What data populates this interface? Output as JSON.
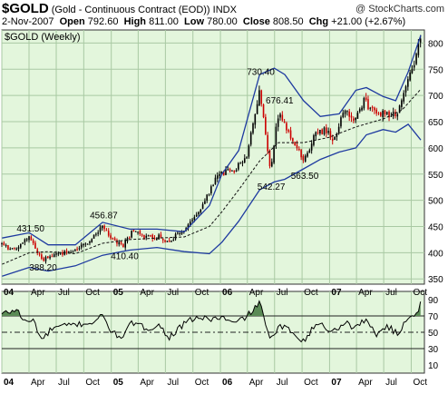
{
  "header": {
    "symbol": "$GOLD",
    "name": "(Gold - Continuous Contract (EOD))",
    "exchange": "INDX",
    "date": "2-Nov-2007",
    "open_label": "Open",
    "open": "792.60",
    "high_label": "High",
    "high": "811.00",
    "low_label": "Low",
    "low": "780.00",
    "close_label": "Close",
    "close": "808.50",
    "chg_label": "Chg",
    "chg": "+21.00 (+2.67%)",
    "brand": "@ StockCharts.com"
  },
  "colors": {
    "panel_bg": "#e3f6dc",
    "grid": "#a9c9a3",
    "bull_candle": "#000000",
    "bear_candle": "#cc0000",
    "bollinger": "#1e3aa0",
    "ma_dashed": "#111111",
    "rsi_line": "#000000",
    "rsi_fill": "#5a8a55"
  },
  "chart_data": [
    {
      "type": "candlestick",
      "title": "$GOLD (Weekly)",
      "frequency": "weekly",
      "overlays": [
        "Bollinger Bands (upper, lower)",
        "moving average (dashed)"
      ],
      "ylim": [
        340,
        825
      ],
      "y_ticks": [
        350,
        400,
        450,
        500,
        550,
        600,
        650,
        700,
        750,
        800
      ],
      "x_tick_labels": [
        "04",
        "Apr",
        "Jul",
        "Oct",
        "05",
        "Apr",
        "Jul",
        "Oct",
        "06",
        "Apr",
        "Jul",
        "Oct",
        "07",
        "Apr",
        "Jul",
        "Oct"
      ],
      "x_range": [
        "2004-01-01",
        "2007-11-02"
      ],
      "annotations": [
        {
          "date": "2004-04-02",
          "value": 431.5,
          "label": "431.50"
        },
        {
          "date": "2004-05-14",
          "value": 388.2,
          "label": "388.20"
        },
        {
          "date": "2004-12-03",
          "value": 456.87,
          "label": "456.87"
        },
        {
          "date": "2005-02-11",
          "value": 410.4,
          "label": "410.40"
        },
        {
          "date": "2006-05-12",
          "value": 730.4,
          "label": "730.40"
        },
        {
          "date": "2006-06-16",
          "value": 542.27,
          "label": "542.27"
        },
        {
          "date": "2006-07-14",
          "value": 676.41,
          "label": "676.41"
        },
        {
          "date": "2006-10-06",
          "value": 563.5,
          "label": "563.50"
        }
      ],
      "close_anchors": [
        [
          "2004-01-02",
          415
        ],
        [
          "2004-02-06",
          405
        ],
        [
          "2004-04-02",
          428
        ],
        [
          "2004-05-14",
          385
        ],
        [
          "2004-07-02",
          395
        ],
        [
          "2004-09-03",
          405
        ],
        [
          "2004-10-15",
          420
        ],
        [
          "2004-12-03",
          450
        ],
        [
          "2005-01-07",
          425
        ],
        [
          "2005-02-11",
          415
        ],
        [
          "2005-03-11",
          440
        ],
        [
          "2005-04-29",
          430
        ],
        [
          "2005-06-10",
          430
        ],
        [
          "2005-07-15",
          422
        ],
        [
          "2005-09-02",
          445
        ],
        [
          "2005-10-14",
          470
        ],
        [
          "2005-12-09",
          535
        ],
        [
          "2006-01-06",
          550
        ],
        [
          "2006-02-17",
          560
        ],
        [
          "2006-03-31",
          585
        ],
        [
          "2006-05-12",
          715
        ],
        [
          "2006-06-16",
          555
        ],
        [
          "2006-07-14",
          665
        ],
        [
          "2006-08-25",
          620
        ],
        [
          "2006-10-06",
          575
        ],
        [
          "2006-11-17",
          630
        ],
        [
          "2006-12-29",
          635
        ],
        [
          "2007-01-12",
          610
        ],
        [
          "2007-02-23",
          680
        ],
        [
          "2007-03-16",
          650
        ],
        [
          "2007-04-27",
          690
        ],
        [
          "2007-06-01",
          665
        ],
        [
          "2007-07-06",
          665
        ],
        [
          "2007-08-17",
          665
        ],
        [
          "2007-09-21",
          730
        ],
        [
          "2007-10-19",
          780
        ],
        [
          "2007-11-02",
          808.5
        ]
      ],
      "upper_band": [
        [
          "2004-01-02",
          428
        ],
        [
          "2004-04-02",
          438
        ],
        [
          "2004-06-04",
          415
        ],
        [
          "2004-09-03",
          415
        ],
        [
          "2004-12-03",
          458
        ],
        [
          "2005-03-04",
          445
        ],
        [
          "2005-06-03",
          445
        ],
        [
          "2005-09-02",
          440
        ],
        [
          "2005-11-25",
          490
        ],
        [
          "2006-01-06",
          550
        ],
        [
          "2006-03-03",
          595
        ],
        [
          "2006-05-12",
          740
        ],
        [
          "2006-06-30",
          752
        ],
        [
          "2006-08-04",
          740
        ],
        [
          "2006-10-06",
          690
        ],
        [
          "2006-12-01",
          660
        ],
        [
          "2007-02-02",
          665
        ],
        [
          "2007-03-30",
          710
        ],
        [
          "2007-05-04",
          715
        ],
        [
          "2007-06-29",
          698
        ],
        [
          "2007-08-10",
          690
        ],
        [
          "2007-09-21",
          745
        ],
        [
          "2007-11-02",
          815
        ]
      ],
      "lower_band": [
        [
          "2004-01-02",
          355
        ],
        [
          "2004-04-02",
          372
        ],
        [
          "2004-06-04",
          365
        ],
        [
          "2004-09-03",
          375
        ],
        [
          "2004-12-03",
          395
        ],
        [
          "2005-03-04",
          405
        ],
        [
          "2005-06-03",
          410
        ],
        [
          "2005-09-02",
          402
        ],
        [
          "2005-11-25",
          398
        ],
        [
          "2006-01-06",
          420
        ],
        [
          "2006-03-03",
          460
        ],
        [
          "2006-05-12",
          520
        ],
        [
          "2006-06-30",
          535
        ],
        [
          "2006-08-04",
          540
        ],
        [
          "2006-10-06",
          560
        ],
        [
          "2006-12-01",
          578
        ],
        [
          "2007-02-02",
          592
        ],
        [
          "2007-03-30",
          600
        ],
        [
          "2007-05-04",
          625
        ],
        [
          "2007-06-29",
          635
        ],
        [
          "2007-08-10",
          630
        ],
        [
          "2007-09-21",
          645
        ],
        [
          "2007-11-02",
          615
        ]
      ],
      "moving_average": [
        [
          "2004-01-02",
          378
        ],
        [
          "2004-04-02",
          400
        ],
        [
          "2004-06-04",
          402
        ],
        [
          "2004-09-03",
          398
        ],
        [
          "2004-12-03",
          418
        ],
        [
          "2005-03-04",
          425
        ],
        [
          "2005-06-03",
          428
        ],
        [
          "2005-09-02",
          430
        ],
        [
          "2005-11-25",
          450
        ],
        [
          "2006-01-06",
          478
        ],
        [
          "2006-03-03",
          520
        ],
        [
          "2006-05-12",
          575
        ],
        [
          "2006-07-14",
          610
        ],
        [
          "2006-10-06",
          610
        ],
        [
          "2006-12-29",
          620
        ],
        [
          "2007-03-30",
          640
        ],
        [
          "2007-06-29",
          655
        ],
        [
          "2007-08-31",
          672
        ],
        [
          "2007-11-02",
          712
        ]
      ]
    },
    {
      "type": "line",
      "title": "RSI",
      "ylim": [
        0,
        100
      ],
      "y_ticks": [
        10,
        30,
        50,
        70,
        90
      ],
      "reference_lines": [
        30,
        50,
        70
      ],
      "x_tick_labels": [
        "04",
        "Apr",
        "Jul",
        "Oct",
        "05",
        "Apr",
        "Jul",
        "Oct",
        "06",
        "Apr",
        "Jul",
        "Oct",
        "07",
        "Apr",
        "Jul",
        "Oct"
      ],
      "rsi_anchors": [
        [
          "2004-01-02",
          72
        ],
        [
          "2004-02-20",
          78
        ],
        [
          "2004-03-19",
          62
        ],
        [
          "2004-04-16",
          65
        ],
        [
          "2004-05-14",
          40
        ],
        [
          "2004-06-18",
          55
        ],
        [
          "2004-08-06",
          58
        ],
        [
          "2004-09-17",
          60
        ],
        [
          "2004-10-29",
          62
        ],
        [
          "2004-12-03",
          70
        ],
        [
          "2005-01-07",
          48
        ],
        [
          "2005-02-11",
          45
        ],
        [
          "2005-03-11",
          62
        ],
        [
          "2005-04-22",
          55
        ],
        [
          "2005-06-10",
          58
        ],
        [
          "2005-07-15",
          44
        ],
        [
          "2005-08-26",
          58
        ],
        [
          "2005-10-07",
          68
        ],
        [
          "2005-11-25",
          66
        ],
        [
          "2006-01-06",
          68
        ],
        [
          "2006-02-17",
          60
        ],
        [
          "2006-04-14",
          74
        ],
        [
          "2006-05-12",
          88
        ],
        [
          "2006-06-02",
          55
        ],
        [
          "2006-06-23",
          42
        ],
        [
          "2006-07-21",
          58
        ],
        [
          "2006-09-01",
          50
        ],
        [
          "2006-10-06",
          40
        ],
        [
          "2006-11-24",
          62
        ],
        [
          "2007-01-12",
          50
        ],
        [
          "2007-02-23",
          64
        ],
        [
          "2007-03-16",
          55
        ],
        [
          "2007-04-27",
          65
        ],
        [
          "2007-06-08",
          48
        ],
        [
          "2007-07-13",
          58
        ],
        [
          "2007-08-17",
          47
        ],
        [
          "2007-09-21",
          70
        ],
        [
          "2007-10-19",
          73
        ],
        [
          "2007-11-02",
          85
        ]
      ]
    }
  ]
}
